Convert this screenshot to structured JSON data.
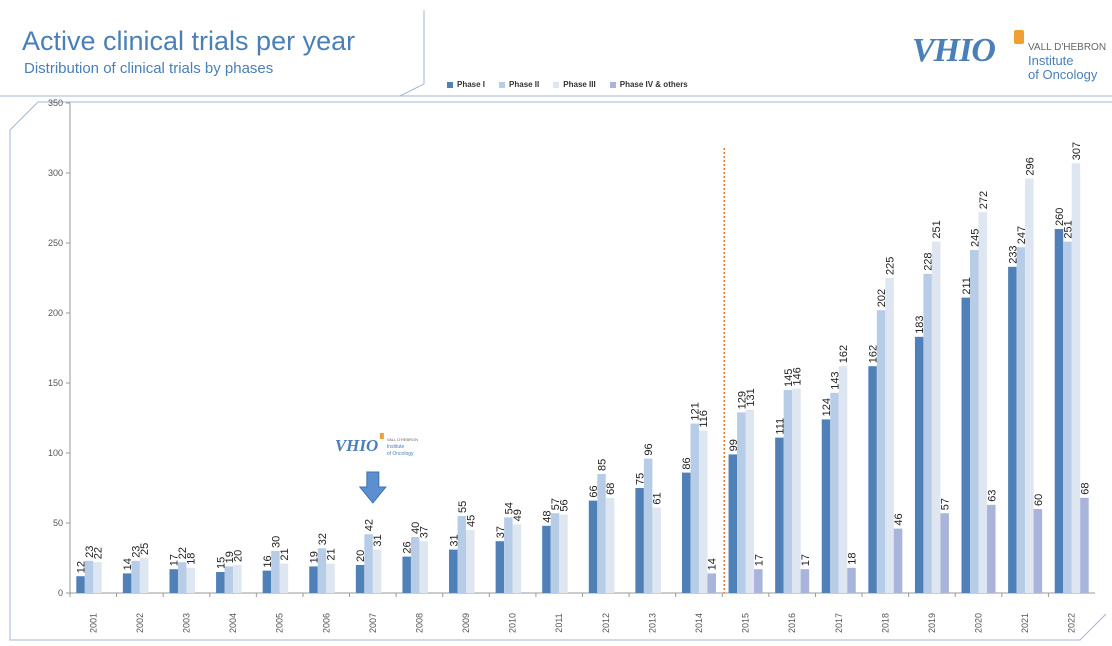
{
  "header": {
    "title": "Active clinical trials per year",
    "subtitle": "Distribution of clinical trials by phases"
  },
  "logo": {
    "mark": "VHIO",
    "line1": "VALL D'HEBRON",
    "line2": "Institute",
    "line3": "of Oncology"
  },
  "colors": {
    "phase1": "#4f81b8",
    "phase2": "#b7cde7",
    "phase3": "#dde6f1",
    "phase4": "#a9b4db",
    "divider": "#e07b30"
  },
  "chart_data": {
    "type": "bar",
    "categories": [
      "2001",
      "2002",
      "2003",
      "2004",
      "2005",
      "2006",
      "2007",
      "2008",
      "2009",
      "2010",
      "2011",
      "2012",
      "2013",
      "2014",
      "2015",
      "2016",
      "2017",
      "2018",
      "2019",
      "2020",
      "2021",
      "2022"
    ],
    "series": [
      {
        "name": "Phase I",
        "values": [
          12,
          14,
          17,
          15,
          16,
          19,
          20,
          26,
          31,
          37,
          48,
          66,
          75,
          86,
          99,
          111,
          124,
          162,
          183,
          211,
          233,
          260
        ]
      },
      {
        "name": "Phase II",
        "values": [
          23,
          23,
          22,
          19,
          30,
          32,
          42,
          40,
          55,
          54,
          57,
          85,
          96,
          121,
          129,
          145,
          143,
          202,
          228,
          245,
          247,
          251
        ]
      },
      {
        "name": "Phase III",
        "values": [
          22,
          25,
          18,
          20,
          21,
          21,
          31,
          37,
          45,
          49,
          56,
          68,
          61,
          116,
          131,
          146,
          162,
          225,
          251,
          272,
          296,
          307
        ]
      },
      {
        "name": "Phase IV & others",
        "values": [
          null,
          null,
          null,
          null,
          null,
          null,
          null,
          null,
          null,
          null,
          null,
          null,
          null,
          14,
          17,
          17,
          18,
          46,
          57,
          63,
          60,
          68
        ]
      }
    ],
    "ylim": [
      0,
      350
    ],
    "yticks": [
      0,
      50,
      100,
      150,
      200,
      250,
      300,
      350
    ],
    "legend_position": "top",
    "divider_between": [
      "2014",
      "2015"
    ]
  },
  "annotation": {
    "logo_mark": "VHIO",
    "logo_line1": "VALL D'HEBRON",
    "logo_line2": "Institute",
    "logo_line3": "of Oncology",
    "at_year": "2007"
  }
}
